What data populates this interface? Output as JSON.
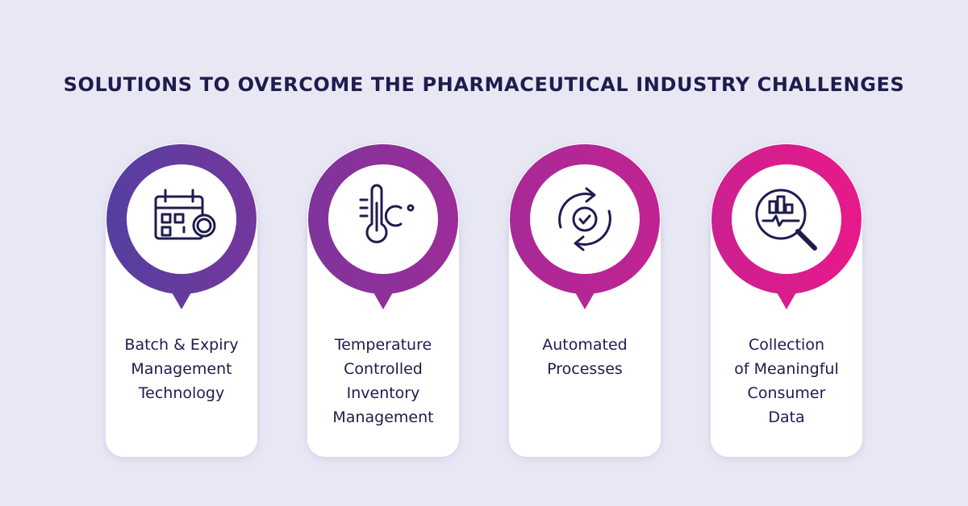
{
  "title": "SOLUTIONS TO OVERCOME THE PHARMACEUTICAL INDUSTRY CHALLENGES",
  "cards": [
    {
      "lines": [
        "Batch & Expiry",
        "Management",
        "Technology"
      ]
    },
    {
      "lines": [
        "Temperature",
        "Controlled",
        "Inventory",
        "Management"
      ]
    },
    {
      "lines": [
        "Automated",
        "Processes"
      ]
    },
    {
      "lines": [
        "Collection",
        "of Meaningful",
        "Consumer",
        "Data"
      ]
    }
  ]
}
